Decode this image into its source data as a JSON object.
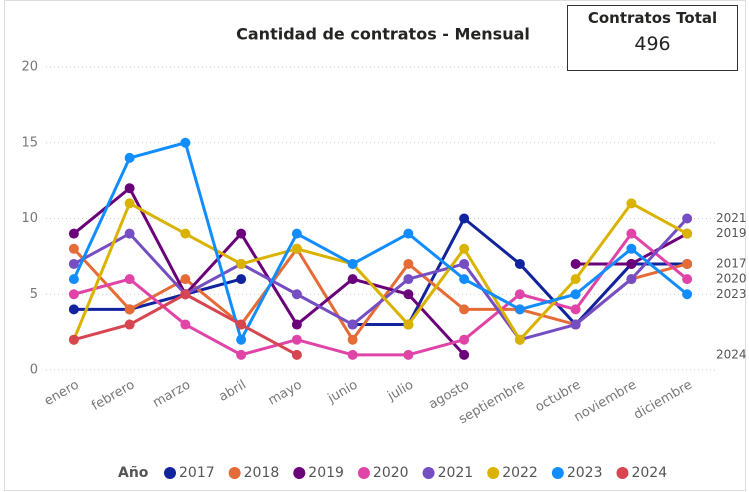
{
  "chart_data": {
    "type": "line",
    "title": "Cantidad de contratos - Mensual",
    "categories": [
      "enero",
      "febrero",
      "marzo",
      "abril",
      "mayo",
      "junio",
      "julio",
      "agosto",
      "septiembre",
      "octubre",
      "noviembre",
      "diciembre"
    ],
    "ylim": [
      0,
      20
    ],
    "yticks": [
      0,
      5,
      10,
      15,
      20
    ],
    "grid": true,
    "legend_title": "Año",
    "legend_position": "bottom",
    "series": [
      {
        "name": "2017",
        "color": "#12239e",
        "end_label": true,
        "values": [
          4,
          4,
          5,
          6,
          null,
          3,
          3,
          10,
          7,
          3,
          7,
          7
        ]
      },
      {
        "name": "2018",
        "color": "#e66c37",
        "end_label": false,
        "values": [
          8,
          4,
          6,
          3,
          8,
          2,
          7,
          4,
          4,
          3,
          6,
          7
        ]
      },
      {
        "name": "2019",
        "color": "#6b007b",
        "end_label": true,
        "values": [
          9,
          12,
          5,
          9,
          3,
          6,
          5,
          1,
          null,
          7,
          7,
          9
        ]
      },
      {
        "name": "2020",
        "color": "#e044a7",
        "end_label": true,
        "values": [
          5,
          6,
          3,
          1,
          2,
          1,
          1,
          2,
          5,
          4,
          9,
          6
        ]
      },
      {
        "name": "2021",
        "color": "#744ec2",
        "end_label": true,
        "values": [
          7,
          9,
          5,
          7,
          5,
          3,
          6,
          7,
          2,
          3,
          6,
          10
        ]
      },
      {
        "name": "2022",
        "color": "#d9b300",
        "end_label": false,
        "values": [
          2,
          11,
          9,
          7,
          8,
          7,
          3,
          8,
          2,
          6,
          11,
          9
        ]
      },
      {
        "name": "2023",
        "color": "#118dff",
        "end_label": true,
        "values": [
          6,
          14,
          15,
          2,
          9,
          7,
          9,
          6,
          4,
          5,
          8,
          5
        ]
      },
      {
        "name": "2024",
        "color": "#d64550",
        "end_label": true,
        "values": [
          2,
          3,
          5,
          3,
          1,
          null,
          null,
          null,
          null,
          null,
          null,
          null
        ]
      }
    ]
  },
  "card": {
    "title": "Contratos Total",
    "value": 496
  }
}
